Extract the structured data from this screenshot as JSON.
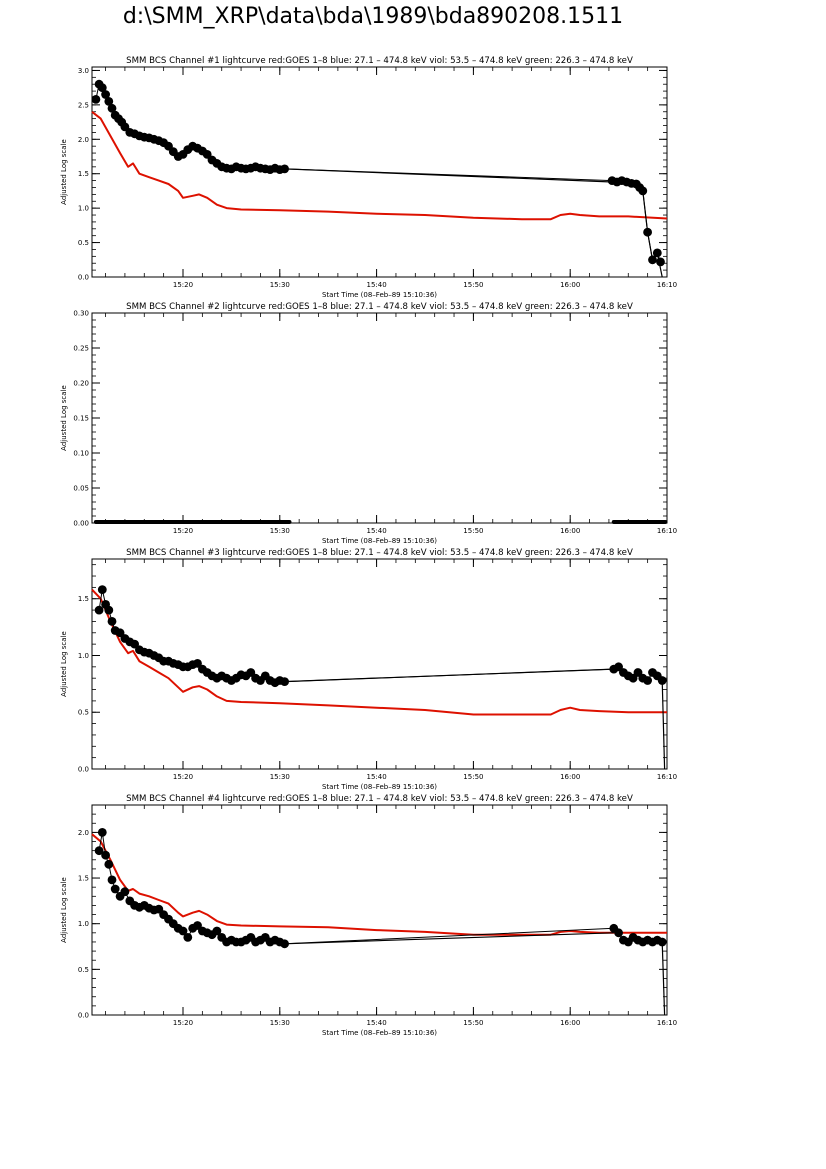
{
  "page": {
    "title": "d:\\SMM_XRP\\data\\bda\\1989\\bda890208.1511"
  },
  "colors": {
    "goes": "#dd1100",
    "bcs": "#000000",
    "axis": "#000000"
  },
  "chart_data": [
    {
      "type": "line",
      "title": "SMM BCS Channel #1 lightcurve  red:GOES 1–8  blue: 27.1 – 474.8 keV  viol: 53.5 – 474.8 keV  green: 226.3 – 474.8 keV",
      "xlabel": "Start Time (08–Feb–89 15:10:36)",
      "ylabel": "Adjusted Log scale",
      "xlim": [
        "15:10:36",
        "16:10:00"
      ],
      "ylim": [
        0,
        3.05
      ],
      "xticks": [
        "15:20",
        "15:30",
        "15:40",
        "15:50",
        "16:00",
        "16:10"
      ],
      "yticks": [
        "0.0",
        "0.5",
        "1.0",
        "1.5",
        "2.0",
        "2.5",
        "3.0"
      ],
      "series": [
        {
          "color": "red",
          "style": "line",
          "x": [
            "15:10:36",
            "15:11:30",
            "15:12:30",
            "15:13:30",
            "15:14:20",
            "15:14:50",
            "15:15:30",
            "15:16:30",
            "15:17:30",
            "15:18:30",
            "15:19:30",
            "15:20:00",
            "15:21:00",
            "15:21:40",
            "15:22:30",
            "15:23:30",
            "15:24:30",
            "15:26:00",
            "15:30:00",
            "15:35:00",
            "15:40:00",
            "15:45:00",
            "15:50:00",
            "15:55:00",
            "15:58:00",
            "15:59:00",
            "16:00:00",
            "16:01:00",
            "16:03:00",
            "16:06:00",
            "16:10:00"
          ],
          "y": [
            2.4,
            2.3,
            2.05,
            1.8,
            1.6,
            1.65,
            1.5,
            1.45,
            1.4,
            1.35,
            1.25,
            1.15,
            1.18,
            1.2,
            1.15,
            1.05,
            1.0,
            0.98,
            0.97,
            0.95,
            0.92,
            0.9,
            0.86,
            0.84,
            0.84,
            0.9,
            0.92,
            0.9,
            0.88,
            0.88,
            0.85
          ]
        },
        {
          "color": "black",
          "style": "points",
          "x": [
            "15:11:00",
            "15:11:20",
            "15:11:40",
            "15:12:00",
            "15:12:20",
            "15:12:40",
            "15:13:00",
            "15:13:20",
            "15:13:40",
            "15:14:00",
            "15:14:30",
            "15:15:00",
            "15:15:30",
            "15:16:00",
            "15:16:30",
            "15:17:00",
            "15:17:30",
            "15:18:00",
            "15:18:30",
            "15:19:00",
            "15:19:30",
            "15:20:00",
            "15:20:30",
            "15:21:00",
            "15:21:30",
            "15:22:00",
            "15:22:30",
            "15:23:00",
            "15:23:30",
            "15:24:00",
            "15:24:30",
            "15:25:00",
            "15:25:30",
            "15:26:00",
            "15:26:30",
            "15:27:00",
            "15:27:30",
            "15:28:00",
            "15:28:30",
            "15:29:00",
            "15:29:30",
            "15:30:00",
            "15:30:30",
            "16:04:20",
            "16:04:50",
            "16:05:20",
            "16:05:50",
            "16:06:20",
            "16:06:50",
            "16:07:10",
            "16:07:30",
            "16:08:00",
            "16:08:30",
            "16:09:00",
            "16:09:20"
          ],
          "y": [
            2.58,
            2.8,
            2.75,
            2.65,
            2.55,
            2.45,
            2.35,
            2.3,
            2.25,
            2.18,
            2.1,
            2.08,
            2.05,
            2.03,
            2.02,
            2.0,
            1.98,
            1.95,
            1.9,
            1.82,
            1.75,
            1.78,
            1.85,
            1.9,
            1.87,
            1.83,
            1.78,
            1.7,
            1.65,
            1.6,
            1.58,
            1.57,
            1.6,
            1.58,
            1.57,
            1.58,
            1.6,
            1.58,
            1.57,
            1.56,
            1.58,
            1.56,
            1.57,
            1.4,
            1.38,
            1.4,
            1.38,
            1.36,
            1.35,
            1.3,
            1.25,
            0.65,
            0.25,
            0.35,
            0.22
          ]
        },
        {
          "color": "black",
          "style": "line",
          "x": [
            "15:30:30",
            "16:04:20"
          ],
          "y": [
            1.57,
            1.38
          ]
        },
        {
          "color": "black",
          "style": "line",
          "x": [
            "16:07:30",
            "16:08:00",
            "16:08:30",
            "16:09:00",
            "16:09:30"
          ],
          "y": [
            1.25,
            0.65,
            0.25,
            0.35,
            0.0
          ]
        }
      ]
    },
    {
      "type": "line",
      "title": "SMM BCS Channel #2 lightcurve  red:GOES 1–8  blue: 27.1 – 474.8 keV  viol: 53.5 – 474.8 keV  green: 226.3 – 474.8 keV",
      "xlabel": "Start Time (08–Feb–89 15:10:36)",
      "ylabel": "Adjusted Log scale",
      "xlim": [
        "15:10:36",
        "16:10:00"
      ],
      "ylim": [
        0,
        0.3
      ],
      "xticks": [
        "15:20",
        "15:30",
        "15:40",
        "15:50",
        "16:00",
        "16:10"
      ],
      "yticks": [
        "0.00",
        "0.05",
        "0.10",
        "0.15",
        "0.20",
        "0.25",
        "0.30"
      ],
      "series": [
        {
          "color": "black",
          "style": "band",
          "x": [
            "15:11:00",
            "15:31:00"
          ],
          "y": [
            0,
            0
          ]
        },
        {
          "color": "black",
          "style": "band",
          "x": [
            "16:04:30",
            "16:09:50"
          ],
          "y": [
            0,
            0
          ]
        }
      ]
    },
    {
      "type": "line",
      "title": "SMM BCS Channel #3 lightcurve  red:GOES 1–8  blue: 27.1 – 474.8 keV  viol: 53.5 – 474.8 keV  green: 226.3 – 474.8 keV",
      "xlabel": "Start Time (08–Feb–89 15:10:36)",
      "ylabel": "Adjusted Log scale",
      "xlim": [
        "15:10:36",
        "16:10:00"
      ],
      "ylim": [
        0,
        1.85
      ],
      "xticks": [
        "15:20",
        "15:30",
        "15:40",
        "15:50",
        "16:00",
        "16:10"
      ],
      "yticks": [
        "0.0",
        "0.5",
        "1.0",
        "1.5"
      ],
      "series": [
        {
          "color": "red",
          "style": "line",
          "x": [
            "15:10:36",
            "15:11:30",
            "15:12:30",
            "15:13:30",
            "15:14:20",
            "15:14:50",
            "15:15:30",
            "15:16:30",
            "15:17:30",
            "15:18:30",
            "15:19:30",
            "15:20:00",
            "15:21:00",
            "15:21:40",
            "15:22:30",
            "15:23:30",
            "15:24:30",
            "15:26:00",
            "15:30:00",
            "15:35:00",
            "15:40:00",
            "15:45:00",
            "15:50:00",
            "15:55:00",
            "15:58:00",
            "15:59:00",
            "16:00:00",
            "16:01:00",
            "16:03:00",
            "16:06:00",
            "16:10:00"
          ],
          "y": [
            1.58,
            1.5,
            1.3,
            1.12,
            1.02,
            1.04,
            0.95,
            0.9,
            0.85,
            0.8,
            0.72,
            0.68,
            0.72,
            0.73,
            0.7,
            0.64,
            0.6,
            0.59,
            0.58,
            0.56,
            0.54,
            0.52,
            0.48,
            0.48,
            0.48,
            0.52,
            0.54,
            0.52,
            0.51,
            0.5,
            0.5
          ]
        },
        {
          "color": "black",
          "style": "points",
          "x": [
            "15:11:20",
            "15:11:40",
            "15:12:00",
            "15:12:20",
            "15:12:40",
            "15:13:00",
            "15:13:30",
            "15:14:00",
            "15:14:30",
            "15:15:00",
            "15:15:30",
            "15:16:00",
            "15:16:30",
            "15:17:00",
            "15:17:30",
            "15:18:00",
            "15:18:30",
            "15:19:00",
            "15:19:30",
            "15:20:00",
            "15:20:30",
            "15:21:00",
            "15:21:30",
            "15:22:00",
            "15:22:30",
            "15:23:00",
            "15:23:30",
            "15:24:00",
            "15:24:30",
            "15:25:00",
            "15:25:30",
            "15:26:00",
            "15:26:30",
            "15:27:00",
            "15:27:30",
            "15:28:00",
            "15:28:30",
            "15:29:00",
            "15:29:30",
            "15:30:00",
            "15:30:30",
            "16:04:30",
            "16:05:00",
            "16:05:30",
            "16:06:00",
            "16:06:30",
            "16:07:00",
            "16:07:30",
            "16:08:00",
            "16:08:30",
            "16:09:00",
            "16:09:30"
          ],
          "y": [
            1.4,
            1.58,
            1.45,
            1.4,
            1.3,
            1.22,
            1.2,
            1.15,
            1.12,
            1.1,
            1.05,
            1.03,
            1.02,
            1.0,
            0.98,
            0.95,
            0.95,
            0.93,
            0.92,
            0.9,
            0.9,
            0.92,
            0.93,
            0.88,
            0.85,
            0.82,
            0.8,
            0.82,
            0.8,
            0.78,
            0.8,
            0.83,
            0.82,
            0.85,
            0.8,
            0.78,
            0.82,
            0.78,
            0.76,
            0.78,
            0.77,
            0.88,
            0.9,
            0.85,
            0.82,
            0.8,
            0.85,
            0.8,
            0.78,
            0.85,
            0.82,
            0.78
          ]
        },
        {
          "color": "black",
          "style": "line",
          "x": [
            "15:30:30",
            "16:04:30"
          ],
          "y": [
            0.77,
            0.88
          ]
        },
        {
          "color": "black",
          "style": "line",
          "x": [
            "16:09:30",
            "16:09:45"
          ],
          "y": [
            0.78,
            0.0
          ]
        }
      ]
    },
    {
      "type": "line",
      "title": "SMM BCS Channel #4 lightcurve  red:GOES 1–8  blue: 27.1 – 474.8 keV  viol: 53.5 – 474.8 keV  green: 226.3 – 474.8 keV",
      "xlabel": "Start Time (08–Feb–89 15:10:36)",
      "ylabel": "Adjusted Log scale",
      "xlim": [
        "15:10:36",
        "16:10:00"
      ],
      "ylim": [
        0,
        2.3
      ],
      "xticks": [
        "15:20",
        "15:30",
        "15:40",
        "15:50",
        "16:00",
        "16:10"
      ],
      "yticks": [
        "0.0",
        "0.5",
        "1.0",
        "1.5",
        "2.0"
      ],
      "series": [
        {
          "color": "red",
          "style": "line",
          "x": [
            "15:10:36",
            "15:11:30",
            "15:12:30",
            "15:13:30",
            "15:14:20",
            "15:14:50",
            "15:15:30",
            "15:16:30",
            "15:17:30",
            "15:18:30",
            "15:19:30",
            "15:20:00",
            "15:21:00",
            "15:21:40",
            "15:22:30",
            "15:23:30",
            "15:24:30",
            "15:26:00",
            "15:30:00",
            "15:35:00",
            "15:40:00",
            "15:45:00",
            "15:50:00",
            "15:55:00",
            "15:58:00",
            "15:59:00",
            "16:00:00",
            "16:01:00",
            "16:03:00",
            "16:06:00",
            "16:10:00"
          ],
          "y": [
            1.98,
            1.9,
            1.7,
            1.48,
            1.36,
            1.38,
            1.33,
            1.3,
            1.26,
            1.22,
            1.12,
            1.08,
            1.12,
            1.14,
            1.1,
            1.03,
            0.99,
            0.98,
            0.97,
            0.96,
            0.93,
            0.91,
            0.88,
            0.88,
            0.88,
            0.91,
            0.92,
            0.91,
            0.9,
            0.9,
            0.9
          ]
        },
        {
          "color": "black",
          "style": "points",
          "x": [
            "15:11:20",
            "15:11:40",
            "15:12:00",
            "15:12:20",
            "15:12:40",
            "15:13:00",
            "15:13:30",
            "15:14:00",
            "15:14:30",
            "15:15:00",
            "15:15:30",
            "15:16:00",
            "15:16:30",
            "15:17:00",
            "15:17:30",
            "15:18:00",
            "15:18:30",
            "15:19:00",
            "15:19:30",
            "15:20:00",
            "15:20:30",
            "15:21:00",
            "15:21:30",
            "15:22:00",
            "15:22:30",
            "15:23:00",
            "15:23:30",
            "15:24:00",
            "15:24:30",
            "15:25:00",
            "15:25:30",
            "15:26:00",
            "15:26:30",
            "15:27:00",
            "15:27:30",
            "15:28:00",
            "15:28:30",
            "15:29:00",
            "15:29:30",
            "15:30:00",
            "15:30:30",
            "16:04:30",
            "16:05:00",
            "16:05:30",
            "16:06:00",
            "16:06:30",
            "16:07:00",
            "16:07:30",
            "16:08:00",
            "16:08:30",
            "16:09:00",
            "16:09:30"
          ],
          "y": [
            1.8,
            2.0,
            1.75,
            1.65,
            1.48,
            1.38,
            1.3,
            1.35,
            1.25,
            1.2,
            1.18,
            1.2,
            1.17,
            1.15,
            1.16,
            1.1,
            1.05,
            1.0,
            0.95,
            0.92,
            0.85,
            0.95,
            0.98,
            0.92,
            0.9,
            0.88,
            0.92,
            0.85,
            0.8,
            0.82,
            0.8,
            0.8,
            0.82,
            0.85,
            0.8,
            0.82,
            0.85,
            0.8,
            0.82,
            0.8,
            0.78,
            0.95,
            0.9,
            0.82,
            0.8,
            0.85,
            0.82,
            0.8,
            0.82,
            0.8,
            0.82,
            0.8
          ]
        },
        {
          "color": "black",
          "style": "line",
          "x": [
            "15:30:30",
            "16:04:30"
          ],
          "y": [
            0.78,
            0.9
          ]
        },
        {
          "color": "black",
          "style": "line",
          "x": [
            "16:09:30",
            "16:09:45"
          ],
          "y": [
            0.8,
            0.0
          ]
        }
      ]
    }
  ]
}
